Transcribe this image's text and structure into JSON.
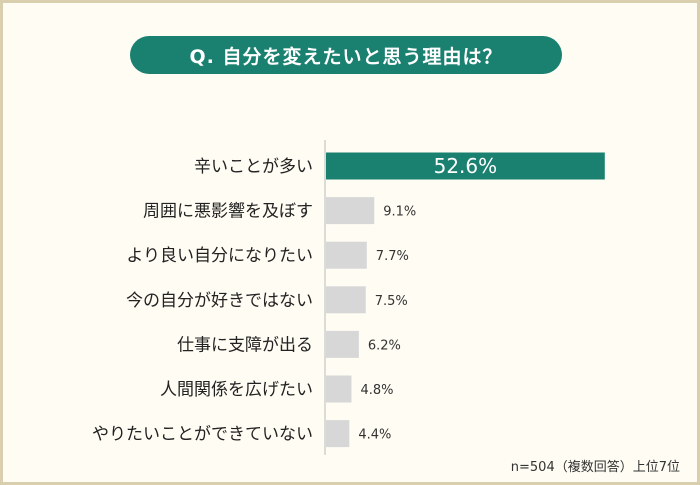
{
  "title": "Q. 自分を変えたいと思う理由は？",
  "footnote": "n=504（複数回答）上位7位",
  "colors": {
    "accent": "#1a8070",
    "bar": "#d7d7d7",
    "axis": "#bbbbbb"
  },
  "chart_data": {
    "type": "bar",
    "orientation": "horizontal",
    "categories": [
      "辛いことが多い",
      "周囲に悪影響を及ぼす",
      "より良い自分になりたい",
      "今の自分が好きではない",
      "仕事に支障が出る",
      "人間関係を広げたい",
      "やりたいことができていない"
    ],
    "values": [
      52.6,
      9.1,
      7.7,
      7.5,
      6.2,
      4.8,
      4.4
    ],
    "value_labels": [
      "52.6%",
      "9.1%",
      "7.7%",
      "7.5%",
      "6.2%",
      "4.8%",
      "4.4%"
    ],
    "unit": "%",
    "highlight_index": 0,
    "grid": false
  }
}
